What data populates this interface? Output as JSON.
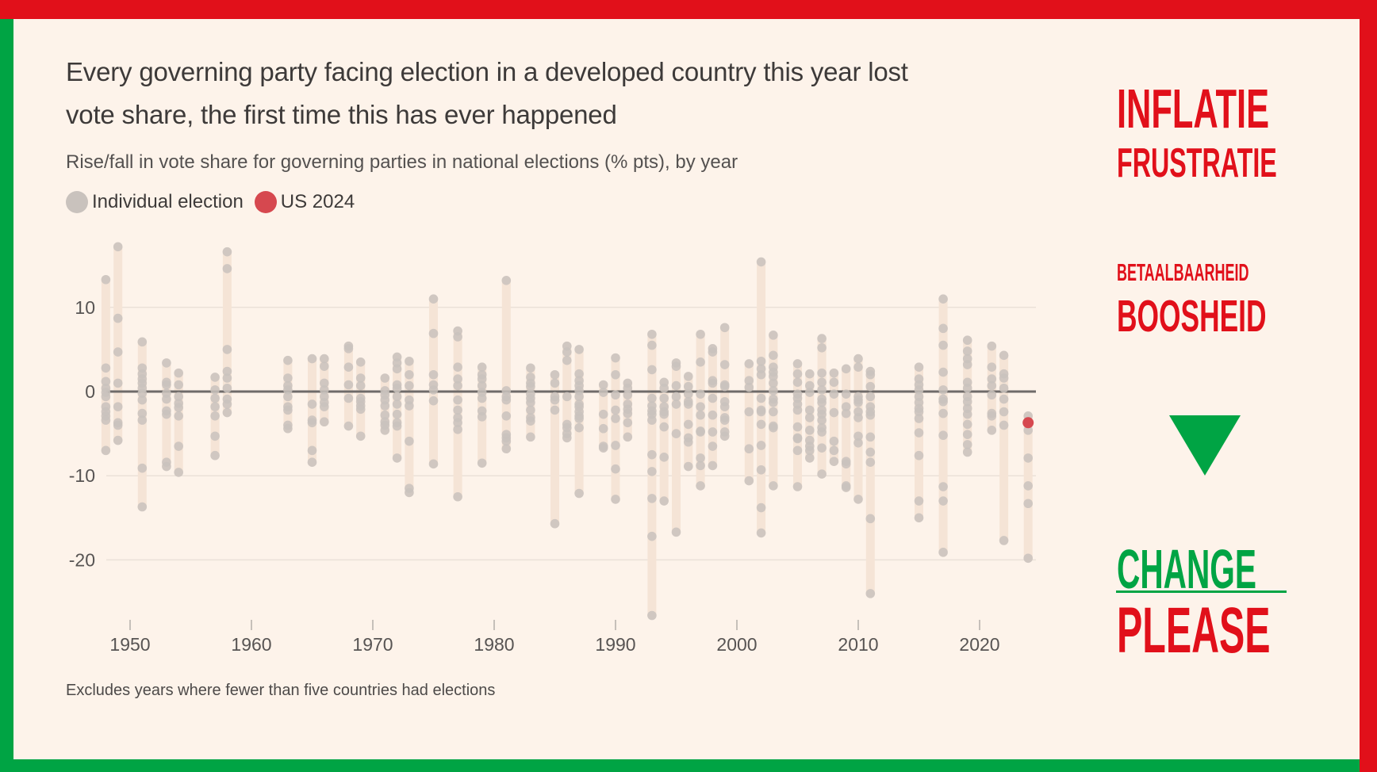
{
  "colors": {
    "frame_red": "#e1101a",
    "frame_green": "#00a444",
    "background": "#fdf3ea",
    "dot_individual": "#c9c2bd",
    "dot_us2024": "#d6484f",
    "range_bar": "#f5e4d6",
    "zero_line": "#6f6b69",
    "gridline": "#ebe1d8"
  },
  "header": {
    "title_line1": "Every governing party facing election in a developed country this year lost",
    "title_line2": "vote share, the first time this has ever happened",
    "subtitle": "Rise/fall in vote share for governing parties in national elections (% pts), by year"
  },
  "legend": {
    "items": [
      {
        "label": "Individual election",
        "color": "#c9c2bd"
      },
      {
        "label": "US 2024",
        "color": "#d6484f"
      }
    ]
  },
  "note": "Excludes years where fewer than five countries had elections",
  "slogans": {
    "line1": "INFLATIE",
    "line2": "FRUSTRATIE",
    "line3": "BETAALBAARHEID",
    "line4": "BOOSHEID",
    "arrow_icon": "down-triangle",
    "line5": "CHANGE",
    "line6": "PLEASE"
  },
  "chart_data": {
    "type": "scatter",
    "title": "Every governing party facing election in a developed country this year lost vote share, the first time this has ever happened",
    "subtitle": "Rise/fall in vote share for governing parties in national elections (% pts), by year",
    "xlabel": "",
    "ylabel": "Rise/fall in vote share (% pts)",
    "xlim": [
      1946,
      2025
    ],
    "ylim": [
      -27,
      18
    ],
    "x_ticks": [
      1950,
      1960,
      1970,
      1980,
      1990,
      2000,
      2010,
      2020
    ],
    "y_ticks": [
      10,
      0,
      -10,
      -20
    ],
    "grid": true,
    "legend_position": "top-left",
    "highlight": {
      "label": "US 2024",
      "year": 2024,
      "value": -3.7
    },
    "series": [
      {
        "year": 1948,
        "values": [
          13.3,
          2.8,
          1.2,
          0.4,
          -0.1,
          -0.6,
          -1.8,
          -2.4,
          -2.9,
          -3.4,
          -7.0
        ]
      },
      {
        "year": 1949,
        "values": [
          17.2,
          8.7,
          4.7,
          1.0,
          -1.8,
          -3.7,
          -4.0,
          -5.8
        ]
      },
      {
        "year": 1951,
        "values": [
          5.9,
          2.8,
          2.1,
          1.5,
          1.0,
          0.4,
          -0.2,
          -1.0,
          -2.6,
          -3.4,
          -9.1,
          -13.7
        ]
      },
      {
        "year": 1953,
        "values": [
          3.4,
          1.1,
          0.8,
          -0.2,
          -0.9,
          -2.3,
          -2.7,
          -8.4,
          -8.9
        ]
      },
      {
        "year": 1954,
        "values": [
          2.2,
          0.8,
          -0.6,
          -1.4,
          -1.9,
          -2.9,
          -6.5,
          -9.6
        ]
      },
      {
        "year": 1957,
        "values": [
          1.7,
          0.2,
          -0.8,
          -1.8,
          -2.9,
          -5.3,
          -7.6
        ]
      },
      {
        "year": 1958,
        "values": [
          16.6,
          14.6,
          5.0,
          2.4,
          1.6,
          0.4,
          -0.9,
          -1.5,
          -2.5
        ]
      },
      {
        "year": 1963,
        "values": [
          3.7,
          1.6,
          0.7,
          0.2,
          -0.6,
          -1.8,
          -2.2,
          -4.0,
          -4.4
        ]
      },
      {
        "year": 1965,
        "values": [
          3.9,
          -1.5,
          -3.4,
          -3.7,
          -7.0,
          -8.4
        ]
      },
      {
        "year": 1966,
        "values": [
          3.9,
          3.0,
          1.0,
          0.2,
          -0.6,
          -1.3,
          -1.8,
          -3.6
        ]
      },
      {
        "year": 1968,
        "values": [
          5.4,
          5.1,
          2.9,
          0.8,
          -0.8,
          -4.1
        ]
      },
      {
        "year": 1969,
        "values": [
          3.5,
          1.6,
          0.7,
          -0.8,
          -1.2,
          -1.7,
          -2.1,
          -5.3
        ]
      },
      {
        "year": 1971,
        "values": [
          1.6,
          0.1,
          -0.4,
          -1.0,
          -1.7,
          -2.8,
          -3.6,
          -4.0,
          -4.6
        ]
      },
      {
        "year": 1972,
        "values": [
          4.1,
          3.4,
          2.7,
          0.8,
          0.4,
          -0.6,
          -1.5,
          -2.7,
          -3.7,
          -4.1,
          -7.9
        ]
      },
      {
        "year": 1973,
        "values": [
          3.6,
          2.0,
          0.7,
          -1.0,
          -1.7,
          -5.9,
          -11.5,
          -12.0
        ]
      },
      {
        "year": 1975,
        "values": [
          11.0,
          6.9,
          2.0,
          0.8,
          0.2,
          -1.1,
          -8.6
        ]
      },
      {
        "year": 1977,
        "values": [
          7.2,
          6.5,
          2.9,
          1.5,
          0.7,
          -1.0,
          -2.2,
          -3.1,
          -3.7,
          -4.5,
          -12.5
        ]
      },
      {
        "year": 1979,
        "values": [
          2.9,
          2.0,
          1.5,
          0.7,
          -0.1,
          -0.8,
          -2.3,
          -3.0,
          -8.5
        ]
      },
      {
        "year": 1981,
        "values": [
          13.2,
          0.1,
          -0.6,
          -1.0,
          -2.9,
          -5.1,
          -5.5,
          -5.9,
          -6.8
        ]
      },
      {
        "year": 1983,
        "values": [
          2.8,
          1.7,
          1.0,
          0.6,
          -0.3,
          -0.8,
          -1.3,
          -2.2,
          -3.1,
          -3.5,
          -5.4
        ]
      },
      {
        "year": 1985,
        "values": [
          2.0,
          1.0,
          -0.6,
          -1.0,
          -2.2,
          -15.7
        ]
      },
      {
        "year": 1986,
        "values": [
          5.4,
          4.7,
          3.7,
          -0.6,
          -3.9,
          -4.3,
          -5.0,
          -5.5
        ]
      },
      {
        "year": 1987,
        "values": [
          5.0,
          2.1,
          1.3,
          0.7,
          0.1,
          -0.6,
          -1.5,
          -1.8,
          -2.4,
          -2.9,
          -3.2,
          -4.3,
          -12.1
        ]
      },
      {
        "year": 1989,
        "values": [
          0.8,
          -0.1,
          -2.7,
          -4.4,
          -6.5,
          -6.7
        ]
      },
      {
        "year": 1990,
        "values": [
          4.0,
          2.0,
          -0.4,
          -2.2,
          -3.2,
          -6.4,
          -9.2,
          -12.8
        ]
      },
      {
        "year": 1991,
        "values": [
          1.0,
          0.4,
          -0.4,
          -1.5,
          -2.1,
          -2.6,
          -3.7,
          -5.4
        ]
      },
      {
        "year": 1993,
        "values": [
          6.8,
          5.5,
          2.6,
          -0.8,
          -1.7,
          -2.3,
          -2.7,
          -3.4,
          -7.5,
          -9.5,
          -12.7,
          -17.2,
          -26.6
        ]
      },
      {
        "year": 1994,
        "values": [
          1.1,
          0.4,
          -0.8,
          -1.8,
          -2.4,
          -2.7,
          -4.2,
          -7.8,
          -13.0
        ]
      },
      {
        "year": 1995,
        "values": [
          3.4,
          3.0,
          0.7,
          -0.6,
          -1.5,
          -5.0,
          -16.7
        ]
      },
      {
        "year": 1996,
        "values": [
          1.8,
          0.6,
          -0.3,
          -1.2,
          -1.5,
          -3.9,
          -5.5,
          -6.0,
          -8.9
        ]
      },
      {
        "year": 1997,
        "values": [
          6.8,
          3.5,
          -0.3,
          -1.8,
          -2.8,
          -4.7,
          -4.8,
          -7.9,
          -8.8,
          -11.2
        ]
      },
      {
        "year": 1998,
        "values": [
          5.1,
          4.7,
          1.3,
          1.0,
          -0.8,
          -2.8,
          -4.8,
          -6.5,
          -8.8
        ]
      },
      {
        "year": 1999,
        "values": [
          7.6,
          3.2,
          0.8,
          0.6,
          -1.2,
          -1.8,
          -3.1,
          -3.4,
          -4.8,
          -5.3
        ]
      },
      {
        "year": 2001,
        "values": [
          3.3,
          1.3,
          0.5,
          -2.4,
          -6.8,
          -10.6
        ]
      },
      {
        "year": 2002,
        "values": [
          15.4,
          3.6,
          2.7,
          2.0,
          -0.8,
          -2.2,
          -2.4,
          -3.9,
          -6.4,
          -9.3,
          -13.8,
          -16.8
        ]
      },
      {
        "year": 2003,
        "values": [
          6.7,
          4.3,
          2.9,
          2.3,
          1.8,
          1.0,
          0.1,
          -0.9,
          -1.3,
          -2.4,
          -4.1,
          -4.3,
          -11.2
        ]
      },
      {
        "year": 2005,
        "values": [
          3.3,
          2.1,
          1.1,
          -0.3,
          -0.8,
          -1.5,
          -2.2,
          -4.2,
          -5.5,
          -5.6,
          -7.0,
          -11.3
        ]
      },
      {
        "year": 2006,
        "values": [
          2.1,
          0.7,
          -0.1,
          -2.2,
          -3.1,
          -4.6,
          -5.8,
          -6.5,
          -7.0,
          -7.9
        ]
      },
      {
        "year": 2007,
        "values": [
          6.3,
          5.2,
          2.2,
          1.1,
          0.2,
          -0.9,
          -1.3,
          -2.2,
          -2.7,
          -3.4,
          -4.3,
          -4.8,
          -6.7,
          -9.8
        ]
      },
      {
        "year": 2008,
        "values": [
          2.2,
          1.1,
          -0.3,
          -2.5,
          -5.9,
          -7.0,
          -8.3
        ]
      },
      {
        "year": 2009,
        "values": [
          2.7,
          -0.3,
          -1.8,
          -2.6,
          -8.3,
          -8.6,
          -11.2,
          -11.4
        ]
      },
      {
        "year": 2010,
        "values": [
          3.9,
          2.9,
          -0.6,
          -1.0,
          -1.3,
          -2.4,
          -3.1,
          -5.3,
          -6.1,
          -12.8
        ]
      },
      {
        "year": 2011,
        "values": [
          2.4,
          2.0,
          0.6,
          -0.6,
          -1.8,
          -2.4,
          -2.8,
          -5.4,
          -7.2,
          -8.4,
          -15.1,
          -24.0
        ]
      },
      {
        "year": 2015,
        "values": [
          2.9,
          1.5,
          0.8,
          0.2,
          -0.6,
          -1.3,
          -2.0,
          -2.4,
          -3.2,
          -4.9,
          -7.6,
          -13.0,
          -15.0
        ]
      },
      {
        "year": 2017,
        "values": [
          11.0,
          7.5,
          5.5,
          2.3,
          0.2,
          -0.9,
          -1.2,
          -2.6,
          -5.2,
          -11.3,
          -13.0,
          -19.1
        ]
      },
      {
        "year": 2019,
        "values": [
          6.1,
          4.8,
          3.9,
          3.2,
          1.1,
          0.4,
          -0.6,
          -1.2,
          -2.0,
          -2.7,
          -3.9,
          -5.1,
          -6.3,
          -7.2
        ]
      },
      {
        "year": 2021,
        "values": [
          5.4,
          2.9,
          1.5,
          0.7,
          -0.4,
          -2.6,
          -2.9,
          -4.6
        ]
      },
      {
        "year": 2022,
        "values": [
          4.3,
          2.1,
          1.6,
          0.4,
          -0.9,
          -2.4,
          -4.0,
          -17.7
        ]
      },
      {
        "year": 2024,
        "values": [
          -2.9,
          -3.7,
          -4.6,
          -7.9,
          -11.2,
          -13.3,
          -19.8
        ]
      }
    ]
  }
}
